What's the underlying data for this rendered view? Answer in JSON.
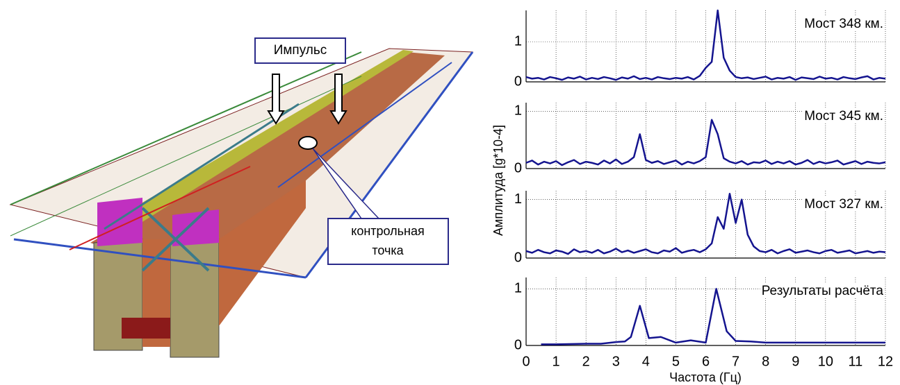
{
  "ylabel": "Амплитуда [g*10-4]",
  "xlabel": "Частота (Гц)",
  "annotations": {
    "impulse": "Импульс",
    "control_point": [
      "контрольная",
      "точка"
    ]
  },
  "chart_data": [
    {
      "type": "line",
      "title": "Мост 348 км.",
      "xlim": [
        0,
        12
      ],
      "ylim": [
        0,
        1.78
      ],
      "yticks": [
        0,
        1
      ],
      "xticks": [
        0,
        1,
        2,
        3,
        4,
        5,
        6,
        7,
        8,
        9,
        10,
        11,
        12
      ],
      "xtick_labels": false,
      "grid": true,
      "x": [
        0,
        0.2,
        0.4,
        0.6,
        0.8,
        1,
        1.2,
        1.4,
        1.6,
        1.8,
        2,
        2.2,
        2.4,
        2.6,
        2.8,
        3,
        3.2,
        3.4,
        3.6,
        3.8,
        4,
        4.2,
        4.4,
        4.6,
        4.8,
        5,
        5.2,
        5.4,
        5.6,
        5.8,
        6,
        6.2,
        6.4,
        6.6,
        6.8,
        7,
        7.2,
        7.4,
        7.6,
        7.8,
        8,
        8.2,
        8.4,
        8.6,
        8.8,
        9,
        9.2,
        9.4,
        9.6,
        9.8,
        10,
        10.2,
        10.4,
        10.6,
        10.8,
        11,
        11.2,
        11.4,
        11.6,
        11.8,
        12
      ],
      "series": [
        {
          "color": "#14148f",
          "values": [
            0.12,
            0.08,
            0.1,
            0.06,
            0.12,
            0.09,
            0.05,
            0.11,
            0.08,
            0.13,
            0.06,
            0.1,
            0.07,
            0.12,
            0.09,
            0.05,
            0.11,
            0.08,
            0.14,
            0.07,
            0.1,
            0.06,
            0.12,
            0.09,
            0.07,
            0.1,
            0.08,
            0.12,
            0.06,
            0.15,
            0.35,
            0.5,
            1.78,
            0.6,
            0.28,
            0.12,
            0.09,
            0.11,
            0.07,
            0.1,
            0.13,
            0.06,
            0.1,
            0.08,
            0.12,
            0.05,
            0.11,
            0.09,
            0.07,
            0.13,
            0.08,
            0.1,
            0.06,
            0.12,
            0.09,
            0.07,
            0.11,
            0.14,
            0.06,
            0.1,
            0.08
          ]
        }
      ]
    },
    {
      "type": "line",
      "title": "Мост 345 км.",
      "xlim": [
        0,
        12
      ],
      "ylim": [
        0,
        1.15
      ],
      "yticks": [
        0,
        1
      ],
      "xticks": [
        0,
        1,
        2,
        3,
        4,
        5,
        6,
        7,
        8,
        9,
        10,
        11,
        12
      ],
      "xtick_labels": false,
      "grid": true,
      "x": [
        0,
        0.2,
        0.4,
        0.6,
        0.8,
        1,
        1.2,
        1.4,
        1.6,
        1.8,
        2,
        2.2,
        2.4,
        2.6,
        2.8,
        3,
        3.2,
        3.4,
        3.6,
        3.8,
        4,
        4.2,
        4.4,
        4.6,
        4.8,
        5,
        5.2,
        5.4,
        5.6,
        5.8,
        6,
        6.2,
        6.4,
        6.6,
        6.8,
        7,
        7.2,
        7.4,
        7.6,
        7.8,
        8,
        8.2,
        8.4,
        8.6,
        8.8,
        9,
        9.2,
        9.4,
        9.6,
        9.8,
        10,
        10.2,
        10.4,
        10.6,
        10.8,
        11,
        11.2,
        11.4,
        11.6,
        11.8,
        12
      ],
      "series": [
        {
          "color": "#14148f",
          "values": [
            0.1,
            0.14,
            0.07,
            0.12,
            0.09,
            0.13,
            0.06,
            0.11,
            0.15,
            0.08,
            0.12,
            0.1,
            0.07,
            0.14,
            0.09,
            0.16,
            0.08,
            0.12,
            0.2,
            0.6,
            0.15,
            0.1,
            0.13,
            0.08,
            0.11,
            0.14,
            0.07,
            0.12,
            0.09,
            0.13,
            0.2,
            0.85,
            0.6,
            0.18,
            0.12,
            0.09,
            0.13,
            0.07,
            0.11,
            0.1,
            0.14,
            0.08,
            0.12,
            0.09,
            0.13,
            0.07,
            0.1,
            0.15,
            0.08,
            0.12,
            0.09,
            0.11,
            0.14,
            0.07,
            0.1,
            0.13,
            0.08,
            0.12,
            0.1,
            0.09,
            0.11
          ]
        }
      ]
    },
    {
      "type": "line",
      "title": "Мост 327 км.",
      "xlim": [
        0,
        12
      ],
      "ylim": [
        0,
        1.15
      ],
      "yticks": [
        0,
        1
      ],
      "xticks": [
        0,
        1,
        2,
        3,
        4,
        5,
        6,
        7,
        8,
        9,
        10,
        11,
        12
      ],
      "xtick_labels": false,
      "grid": true,
      "x": [
        0,
        0.2,
        0.4,
        0.6,
        0.8,
        1,
        1.2,
        1.4,
        1.6,
        1.8,
        2,
        2.2,
        2.4,
        2.6,
        2.8,
        3,
        3.2,
        3.4,
        3.6,
        3.8,
        4,
        4.2,
        4.4,
        4.6,
        4.8,
        5,
        5.2,
        5.4,
        5.6,
        5.8,
        6,
        6.2,
        6.4,
        6.6,
        6.8,
        7,
        7.2,
        7.4,
        7.6,
        7.8,
        8,
        8.2,
        8.4,
        8.6,
        8.8,
        9,
        9.2,
        9.4,
        9.6,
        9.8,
        10,
        10.2,
        10.4,
        10.6,
        10.8,
        11,
        11.2,
        11.4,
        11.6,
        11.8,
        12
      ],
      "series": [
        {
          "color": "#14148f",
          "values": [
            0.12,
            0.09,
            0.14,
            0.1,
            0.08,
            0.13,
            0.11,
            0.07,
            0.15,
            0.1,
            0.12,
            0.09,
            0.14,
            0.08,
            0.11,
            0.16,
            0.1,
            0.13,
            0.09,
            0.12,
            0.15,
            0.1,
            0.08,
            0.13,
            0.11,
            0.17,
            0.09,
            0.12,
            0.14,
            0.1,
            0.15,
            0.25,
            0.7,
            0.5,
            1.1,
            0.6,
            1.0,
            0.4,
            0.2,
            0.12,
            0.1,
            0.14,
            0.08,
            0.12,
            0.15,
            0.09,
            0.11,
            0.13,
            0.1,
            0.08,
            0.12,
            0.14,
            0.09,
            0.11,
            0.13,
            0.08,
            0.1,
            0.12,
            0.09,
            0.11,
            0.1
          ]
        }
      ]
    },
    {
      "type": "line",
      "title": "Результаты расчёта",
      "xlim": [
        0,
        12
      ],
      "ylim": [
        0,
        1.2
      ],
      "yticks": [
        0,
        1
      ],
      "xticks": [
        0,
        1,
        2,
        3,
        4,
        5,
        6,
        7,
        8,
        9,
        10,
        11,
        12
      ],
      "xtick_labels": true,
      "grid": true,
      "x": [
        0.5,
        1,
        2,
        2.5,
        3,
        3.3,
        3.5,
        3.8,
        4.1,
        4.5,
        5,
        5.5,
        6,
        6.35,
        6.7,
        7,
        7.5,
        8,
        9,
        10,
        11,
        12
      ],
      "series": [
        {
          "color": "#14148f",
          "values": [
            0.02,
            0.02,
            0.03,
            0.03,
            0.06,
            0.07,
            0.15,
            0.7,
            0.13,
            0.15,
            0.05,
            0.09,
            0.05,
            1.0,
            0.25,
            0.08,
            0.07,
            0.05,
            0.05,
            0.05,
            0.05,
            0.05
          ]
        }
      ]
    }
  ]
}
